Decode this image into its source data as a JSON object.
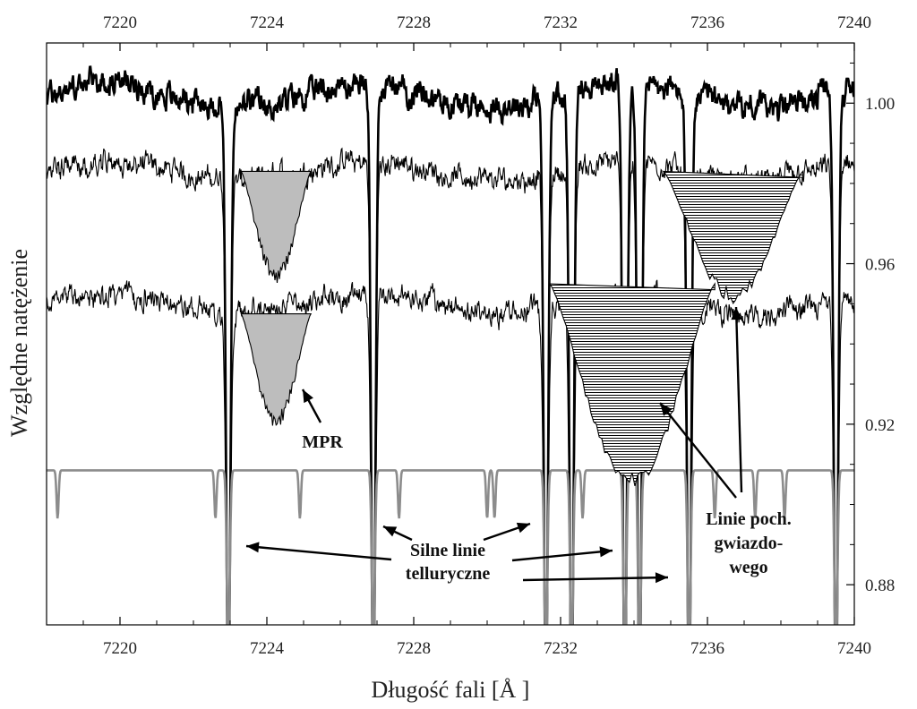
{
  "chart_data": {
    "type": "line",
    "xlabel": "Długość fali [Å ]",
    "ylabel": "Względne natężenie",
    "xlim": [
      7218,
      7240
    ],
    "ylim": [
      0.87,
      1.015
    ],
    "x_ticks": [
      "7220",
      "7224",
      "7228",
      "7232",
      "7236",
      "7240"
    ],
    "y_ticks": [
      "0.88",
      "0.92",
      "0.96",
      "1.00"
    ],
    "x_tick_values": [
      7220,
      7224,
      7228,
      7232,
      7236,
      7240
    ],
    "y_tick_values": [
      0.88,
      0.92,
      0.96,
      1.0
    ],
    "grid": false,
    "legend": "none",
    "series": [
      {
        "style": "thick-black",
        "baseline": 1.002,
        "noise": 0.005
      },
      {
        "style": "thin-black",
        "baseline": 0.983,
        "noise": 0.0045
      },
      {
        "style": "thin-black",
        "baseline": 0.95,
        "noise": 0.0045
      },
      {
        "style": "thick-gray",
        "baseline": 0.9085,
        "noise": 0
      }
    ],
    "telluric_lines": [
      7222.95,
      7226.9,
      7231.6,
      7232.3,
      7233.75,
      7234.15,
      7235.5,
      7239.5
    ],
    "mpr_features": [
      {
        "x": [
          7223.3,
          7225.2
        ],
        "top": 0.983,
        "depth": 0.957,
        "fill": "#bdbdbd"
      },
      {
        "x": [
          7223.3,
          7225.2
        ],
        "top": 0.9475,
        "depth": 0.921,
        "fill": "#bdbdbd"
      },
      {
        "x": [
          7234.8,
          7238.6
        ],
        "top": 0.983,
        "depth": 0.952,
        "fill": "hatched"
      },
      {
        "x": [
          7231.7,
          7236.2
        ],
        "top": 0.955,
        "depth": 0.906,
        "fill": "hatched"
      }
    ],
    "annotations": [
      {
        "text": "MPR"
      },
      {
        "lines": [
          "Silne linie",
          "telluryczne"
        ]
      },
      {
        "lines": [
          "Linie poch.",
          "gwiazdo-",
          "wego"
        ]
      }
    ],
    "colors": {
      "line": "#000000",
      "telluric": "#8c8c8c",
      "shade": "#bdbdbd"
    }
  }
}
